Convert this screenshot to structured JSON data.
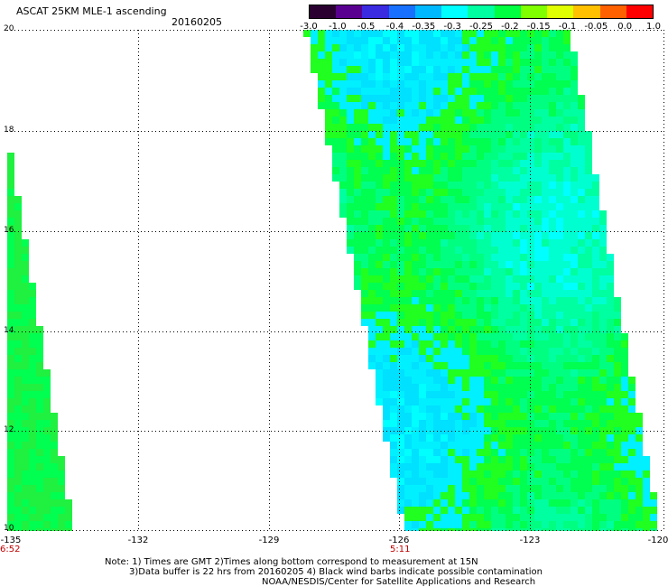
{
  "header": {
    "title": "ASCAT 25KM MLE-1 ascending",
    "date": "20160205"
  },
  "colorbar": {
    "labels": [
      "-3.0",
      "-1.0",
      "-0.5",
      "-0.4",
      "-0.35",
      "-0.3",
      "-0.25",
      "-0.2",
      "-0.15",
      "-0.1",
      "-0.05",
      "0.0",
      "1.0"
    ],
    "colors": [
      "#2a0030",
      "#5a0090",
      "#3a2ae0",
      "#1870ff",
      "#00b8ff",
      "#00ffff",
      "#00ffa0",
      "#00ff40",
      "#80ff00",
      "#e0ff00",
      "#ffc000",
      "#ff6000",
      "#ff0000"
    ]
  },
  "map": {
    "lat_labels": [
      "20",
      "18",
      "16",
      "14",
      "12",
      "10"
    ],
    "lon_labels": [
      "-135",
      "-132",
      "-129",
      "-126",
      "-123",
      "-120"
    ],
    "pass_times": [
      "6:52",
      "5:11"
    ],
    "gridlines": "dotted"
  },
  "footer": {
    "note_line1": "Note: 1) Times are GMT 2)Times along bottom correspond to measurement at 15N",
    "note_line2": "3)Data buffer is 22 hrs from 20160205 4) Black wind barbs indicate possible contamination",
    "credit": "NOAA/NESDIS/Center for Satellite Applications and Research"
  }
}
